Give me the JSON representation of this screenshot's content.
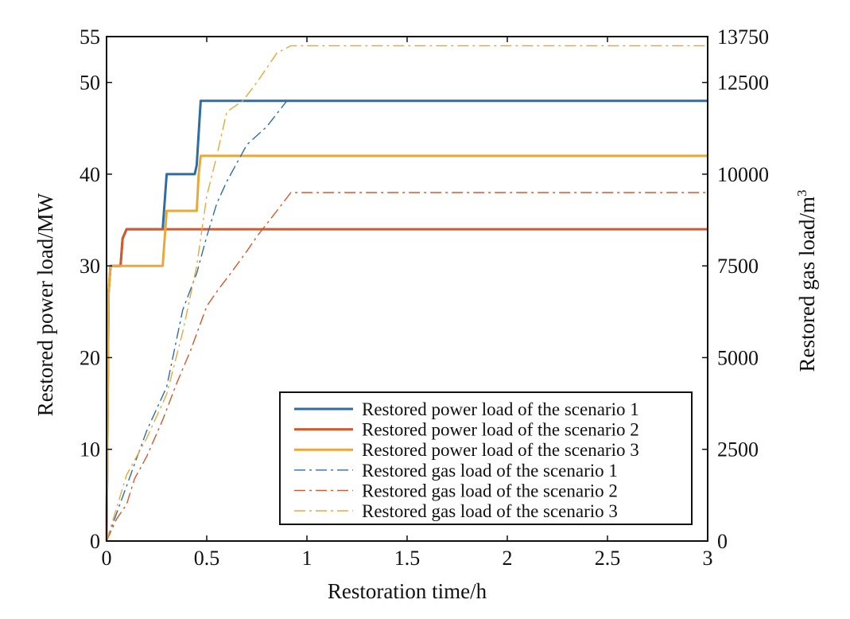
{
  "chart_data": {
    "type": "line",
    "xlabel": "Restoration time/h",
    "ylabel_left": "Restored power load/MW",
    "ylabel_right": "Restored gas load/m",
    "ylabel_right_superscript": "3",
    "xlim": [
      0,
      3
    ],
    "ylim_left": [
      0,
      55
    ],
    "ylim_right": [
      0,
      13750
    ],
    "x_ticks": [
      "0",
      "0.5",
      "1",
      "1.5",
      "2",
      "2.5",
      "3"
    ],
    "y_left_ticks": [
      "0",
      "10",
      "20",
      "30",
      "40",
      "50",
      "55"
    ],
    "y_right_ticks": [
      "0",
      "2500",
      "5000",
      "7500",
      "10000",
      "12500",
      "13750"
    ],
    "grid": false,
    "legend_position": "bottom-right",
    "series": [
      {
        "name": "Restored power load of the scenario 1",
        "axis": "left",
        "style": "solid",
        "color": "#2e6da4",
        "points": [
          [
            0,
            0
          ],
          [
            0.01,
            27
          ],
          [
            0.02,
            30
          ],
          [
            0.07,
            30
          ],
          [
            0.08,
            33
          ],
          [
            0.1,
            34
          ],
          [
            0.28,
            34
          ],
          [
            0.3,
            40
          ],
          [
            0.44,
            40
          ],
          [
            0.45,
            41
          ],
          [
            0.47,
            48
          ],
          [
            3,
            48
          ]
        ]
      },
      {
        "name": "Restored power load of the scenario 2",
        "axis": "left",
        "style": "solid",
        "color": "#d4582b",
        "points": [
          [
            0,
            0
          ],
          [
            0.01,
            27
          ],
          [
            0.02,
            30
          ],
          [
            0.07,
            30
          ],
          [
            0.08,
            33
          ],
          [
            0.1,
            34
          ],
          [
            3,
            34
          ]
        ]
      },
      {
        "name": "Restored power load of the scenario 3",
        "axis": "left",
        "style": "solid",
        "color": "#e8a83a",
        "points": [
          [
            0,
            0
          ],
          [
            0.01,
            27
          ],
          [
            0.02,
            30
          ],
          [
            0.28,
            30
          ],
          [
            0.3,
            36
          ],
          [
            0.45,
            36
          ],
          [
            0.46,
            40
          ],
          [
            0.47,
            42
          ],
          [
            3,
            42
          ]
        ]
      },
      {
        "name": "Restored gas load of the scenario 1",
        "axis": "right",
        "style": "dashdot",
        "color": "#2e6da4",
        "points": [
          [
            0,
            0
          ],
          [
            0.02,
            300
          ],
          [
            0.1,
            1500
          ],
          [
            0.2,
            3000
          ],
          [
            0.3,
            4200
          ],
          [
            0.38,
            6300
          ],
          [
            0.45,
            7300
          ],
          [
            0.5,
            8300
          ],
          [
            0.55,
            9200
          ],
          [
            0.6,
            9800
          ],
          [
            0.65,
            10300
          ],
          [
            0.7,
            10800
          ],
          [
            0.8,
            11300
          ],
          [
            0.9,
            12000
          ]
        ]
      },
      {
        "name": "Restored gas load of the scenario 2",
        "axis": "right",
        "style": "dashdot",
        "color": "#d4582b",
        "points": [
          [
            0,
            0
          ],
          [
            0.05,
            600
          ],
          [
            0.1,
            1000
          ],
          [
            0.14,
            1700
          ],
          [
            0.2,
            2300
          ],
          [
            0.28,
            3300
          ],
          [
            0.35,
            4300
          ],
          [
            0.42,
            5200
          ],
          [
            0.5,
            6400
          ],
          [
            0.55,
            6800
          ],
          [
            0.62,
            7300
          ],
          [
            0.7,
            7900
          ],
          [
            0.75,
            8300
          ],
          [
            0.85,
            9000
          ],
          [
            0.92,
            9500
          ],
          [
            3,
            9500
          ]
        ]
      },
      {
        "name": "Restored gas load of the scenario 3",
        "axis": "right",
        "style": "dashdot",
        "color": "#e8a83a",
        "points": [
          [
            0,
            0
          ],
          [
            0.05,
            900
          ],
          [
            0.1,
            1800
          ],
          [
            0.2,
            2800
          ],
          [
            0.3,
            4000
          ],
          [
            0.38,
            5700
          ],
          [
            0.45,
            7500
          ],
          [
            0.5,
            9400
          ],
          [
            0.55,
            10500
          ],
          [
            0.6,
            11700
          ],
          [
            0.68,
            12000
          ],
          [
            0.75,
            12500
          ],
          [
            0.85,
            13300
          ],
          [
            0.92,
            13500
          ],
          [
            3,
            13500
          ]
        ]
      }
    ]
  }
}
